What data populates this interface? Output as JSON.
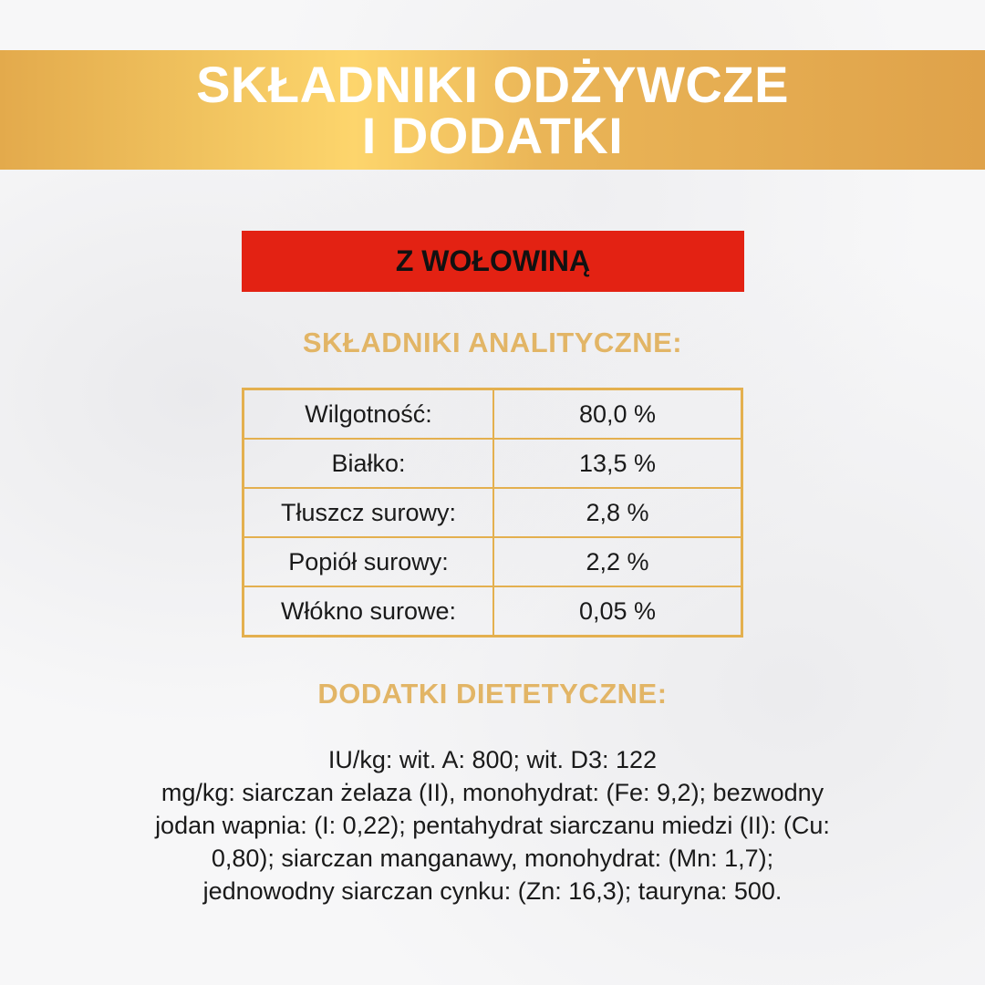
{
  "header": {
    "title_line1": "SKŁADNIKI ODŻYWCZE",
    "title_line2": "I DODATKI"
  },
  "variant": "Z WOŁOWINĄ",
  "analytical": {
    "heading": "SKŁADNIKI ANALITYCZNE:",
    "rows": [
      {
        "label": "Wilgotność:",
        "value": "80,0 %"
      },
      {
        "label": "Białko:",
        "value": "13,5 %"
      },
      {
        "label": "Tłuszcz surowy:",
        "value": "2,8 %"
      },
      {
        "label": "Popiół surowy:",
        "value": "2,2 %"
      },
      {
        "label": "Włókno surowe:",
        "value": "0,05 %"
      }
    ]
  },
  "additives": {
    "heading": "DODATKI DIETETYCZNE:",
    "lines": [
      "IU/kg: wit. A: 800; wit. D3: 122",
      "mg/kg: siarczan żelaza (II), monohydrat: (Fe: 9,2); bezwodny",
      "jodan wapnia: (I: 0,22); pentahydrat siarczanu miedzi (II): (Cu:",
      "0,80); siarczan manganawy, monohydrat: (Mn: 1,7);",
      "jednowodny siarczan cynku: (Zn: 16,3); tauryna: 500."
    ]
  },
  "colors": {
    "gold": "#e4b04f",
    "red": "#e32213"
  }
}
